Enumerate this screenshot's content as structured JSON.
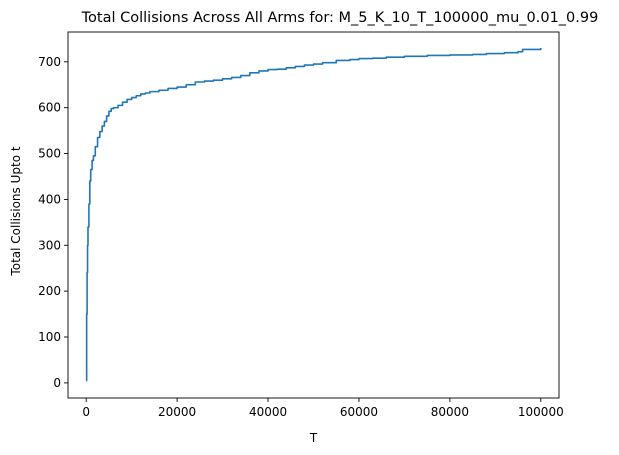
{
  "chart_data": {
    "type": "line",
    "title": "Total Collisions Across All Arms for: M_5_K_10_T_100000_mu_0.01_0.99",
    "xlabel": "T",
    "ylabel": "Total Collisions Upto t",
    "xlim": [
      -4000,
      104000
    ],
    "ylim": [
      -33,
      765
    ],
    "x_ticks": [
      0,
      20000,
      40000,
      60000,
      80000,
      100000
    ],
    "y_ticks": [
      0,
      100,
      200,
      300,
      400,
      500,
      600,
      700
    ],
    "x_tick_labels": [
      "0",
      "20000",
      "40000",
      "60000",
      "80000",
      "100000"
    ],
    "y_tick_labels": [
      "0",
      "100",
      "200",
      "300",
      "400",
      "500",
      "600",
      "700"
    ],
    "grid": false,
    "legend": "none",
    "series": [
      {
        "color": "#1f77b4",
        "x": [
          0,
          100,
          200,
          300,
          400,
          600,
          800,
          1000,
          1300,
          1600,
          2000,
          2500,
          3000,
          3500,
          4000,
          4500,
          5000,
          5500,
          6000,
          7000,
          8000,
          9000,
          10000,
          11000,
          12000,
          13000,
          14000,
          16000,
          18000,
          20000,
          22000,
          24000,
          26000,
          28000,
          30000,
          32000,
          34000,
          36000,
          38000,
          40000,
          42000,
          44000,
          46000,
          48000,
          50000,
          52000,
          55000,
          58000,
          60000,
          63000,
          66000,
          70000,
          75000,
          80000,
          85000,
          88000,
          92000,
          95000,
          96000,
          100000
        ],
        "y": [
          5,
          150,
          240,
          300,
          340,
          390,
          440,
          465,
          485,
          495,
          515,
          535,
          548,
          560,
          570,
          582,
          592,
          598,
          600,
          605,
          612,
          618,
          622,
          626,
          630,
          632,
          635,
          638,
          642,
          645,
          650,
          656,
          658,
          660,
          663,
          666,
          670,
          676,
          680,
          683,
          684,
          687,
          690,
          693,
          695,
          698,
          703,
          705,
          707,
          708,
          710,
          712,
          714,
          715,
          716,
          718,
          720,
          722,
          727,
          730
        ]
      }
    ]
  }
}
